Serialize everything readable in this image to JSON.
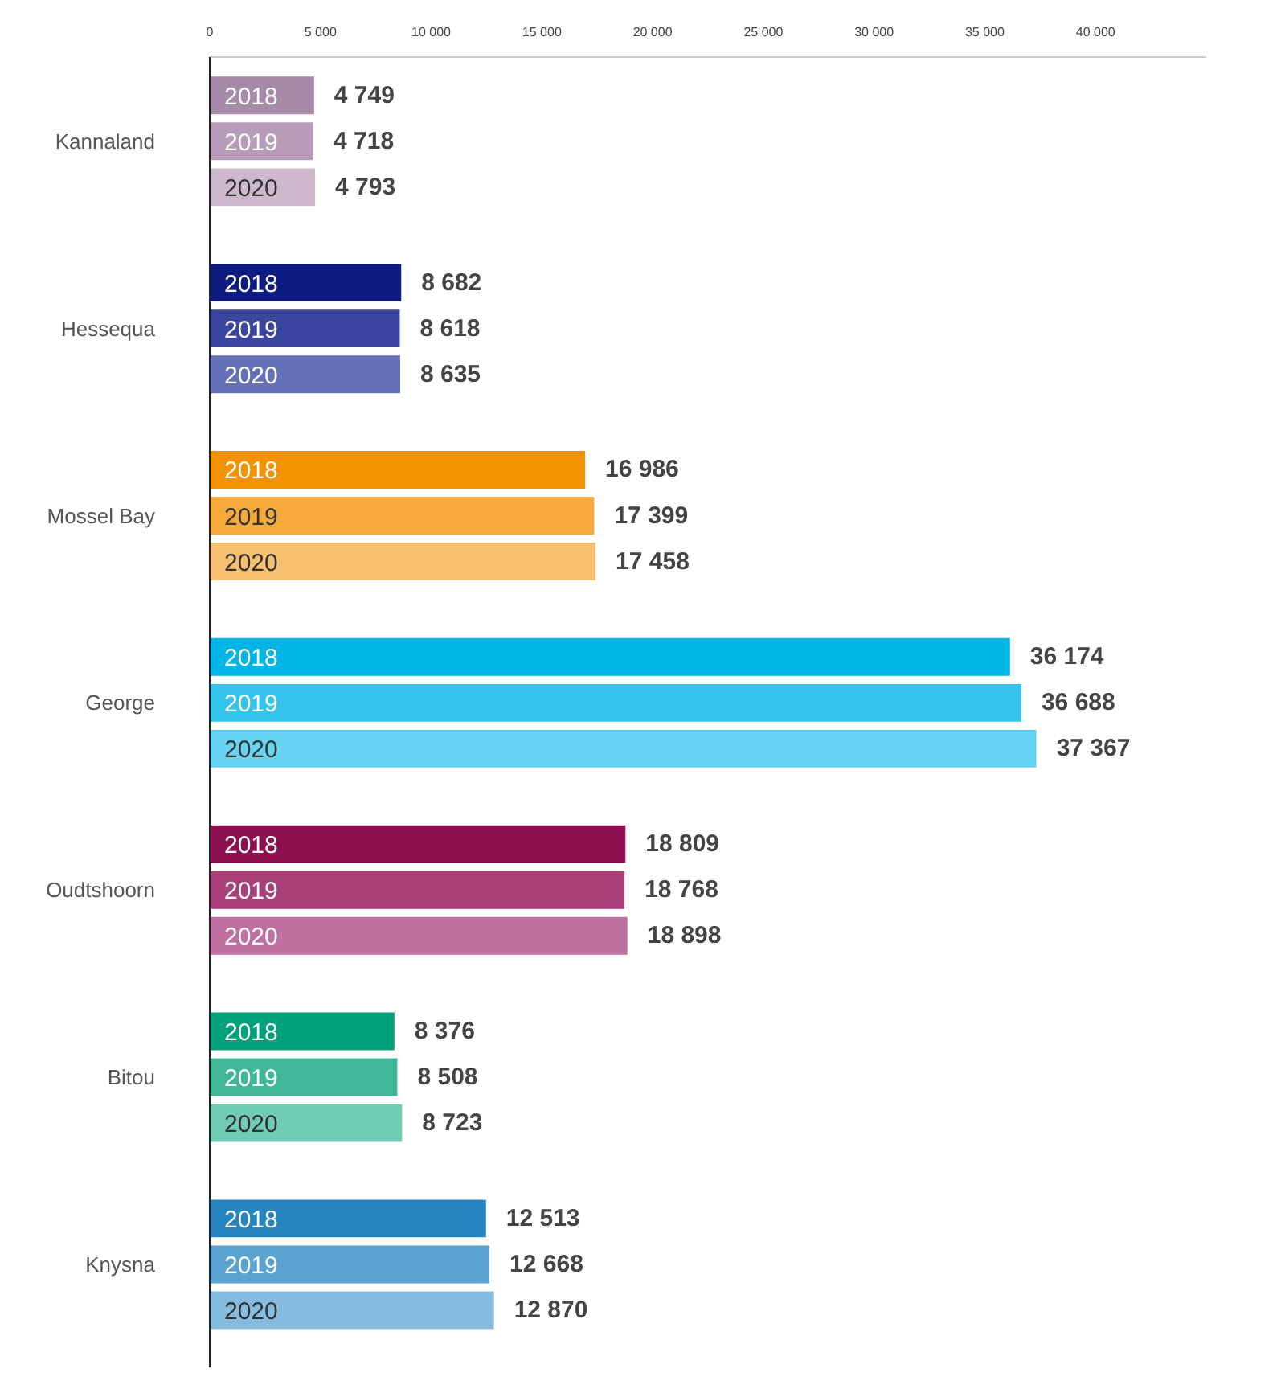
{
  "chart_data": {
    "type": "bar",
    "orientation": "horizontal",
    "categories": [
      "Kannaland",
      "Hessequa",
      "Mossel Bay",
      "George",
      "Oudtshoorn",
      "Bitou",
      "Knysna"
    ],
    "series": [
      {
        "name": "2018",
        "colors": [
          "#a68aa8",
          "#0d1a80",
          "#f39200",
          "#00b4e6",
          "#8c0f50",
          "#00a07a",
          "#2585c0"
        ],
        "values": [
          4749,
          8682,
          16986,
          36174,
          18809,
          8376,
          12513
        ],
        "value_labels": [
          "4 749",
          "8 682",
          "16 986",
          "36 174",
          "18 809",
          "8 376",
          "12 513"
        ]
      },
      {
        "name": "2019",
        "colors": [
          "#b89bb8",
          "#3a45a0",
          "#f5a93a",
          "#33c3ec",
          "#a8407a",
          "#40b898",
          "#5aa2d0"
        ],
        "values": [
          4718,
          8618,
          17399,
          36688,
          18768,
          8508,
          12668
        ],
        "value_labels": [
          "4 718",
          "8 618",
          "17 399",
          "36 688",
          "18 768",
          "8 508",
          "12 668"
        ]
      },
      {
        "name": "2020",
        "colors": [
          "#cdb8cd",
          "#6470b8",
          "#f7c070",
          "#66d3f2",
          "#c070a0",
          "#70ccb2",
          "#85bcdf"
        ],
        "values": [
          4793,
          8635,
          17458,
          37367,
          18898,
          8723,
          12870
        ],
        "value_labels": [
          "4 793",
          "8 635",
          "17 458",
          "37 367",
          "18 898",
          "8 723",
          "12 870"
        ]
      }
    ],
    "xlim": [
      0,
      45000
    ],
    "xticks": [
      0,
      {
        "value": 5000,
        "label": "5 000"
      },
      {
        "value": 10000,
        "label": "10 000"
      },
      {
        "value": 15000,
        "label": "15 000"
      },
      {
        "value": 20000,
        "label": "20 000"
      },
      {
        "value": 25000,
        "label": "25 000"
      },
      {
        "value": 30000,
        "label": "30 000"
      },
      {
        "value": 35000,
        "label": "35 000"
      },
      {
        "value": 40000,
        "label": "40 000"
      }
    ],
    "grid": false
  }
}
